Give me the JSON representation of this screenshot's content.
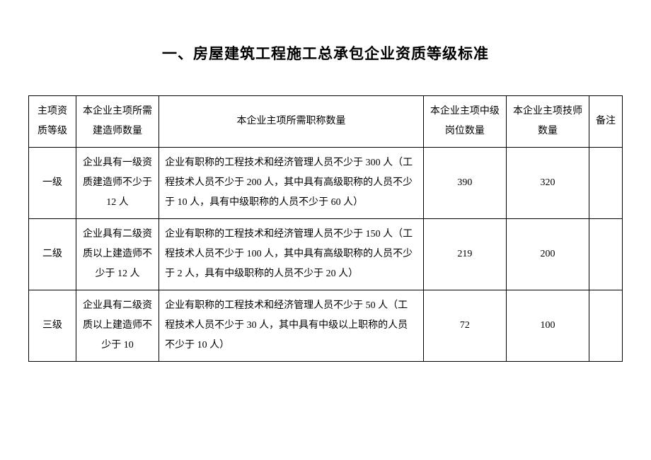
{
  "document": {
    "title": "一、房屋建筑工程施工总承包企业资质等级标准",
    "table": {
      "columns": {
        "level": "主项资质等级",
        "builders": "本企业主项所需建造师数量",
        "titles": "本企业主项所需职称数量",
        "midpos": "本企业主项中级岗位数量",
        "tech": "本企业主项技师数量",
        "notes": "备注"
      },
      "rows": [
        {
          "level": "一级",
          "builders": "企业具有一级资质建造师不少于 12 人",
          "titles": "企业有职称的工程技术和经济管理人员不少于 300 人（工程技术人员不少于 200 人，其中具有高级职称的人员不少于 10 人，具有中级职称的人员不少于 60 人）",
          "midpos": "390",
          "tech": "320",
          "notes": ""
        },
        {
          "level": "二级",
          "builders": "企业具有二级资质以上建造师不少于 12 人",
          "titles": "企业有职称的工程技术和经济管理人员不少于 150 人（工程技术人员不少于 100 人，其中具有高级职称的人员不少于 2 人，具有中级职称的人员不少于 20 人）",
          "midpos": "219",
          "tech": "200",
          "notes": ""
        },
        {
          "level": "三级",
          "builders": "企业具有二级资质以上建造师不少于 10",
          "titles": "企业有职称的工程技术和经济管理人员不少于 50 人（工程技术人员不少于 30 人，其中具有中级以上职称的人员不少于 10 人）",
          "midpos": "72",
          "tech": "100",
          "notes": ""
        }
      ]
    },
    "styling": {
      "title_fontsize": 21,
      "title_fontweight": "bold",
      "cell_fontsize": 14,
      "line_height": 2.0,
      "border_color": "#000000",
      "text_color": "#000000",
      "background_color": "#ffffff",
      "column_widths": {
        "level": 60,
        "builders": 105,
        "titles": 335,
        "midpos": 105,
        "tech": 105,
        "notes": 42
      }
    }
  }
}
